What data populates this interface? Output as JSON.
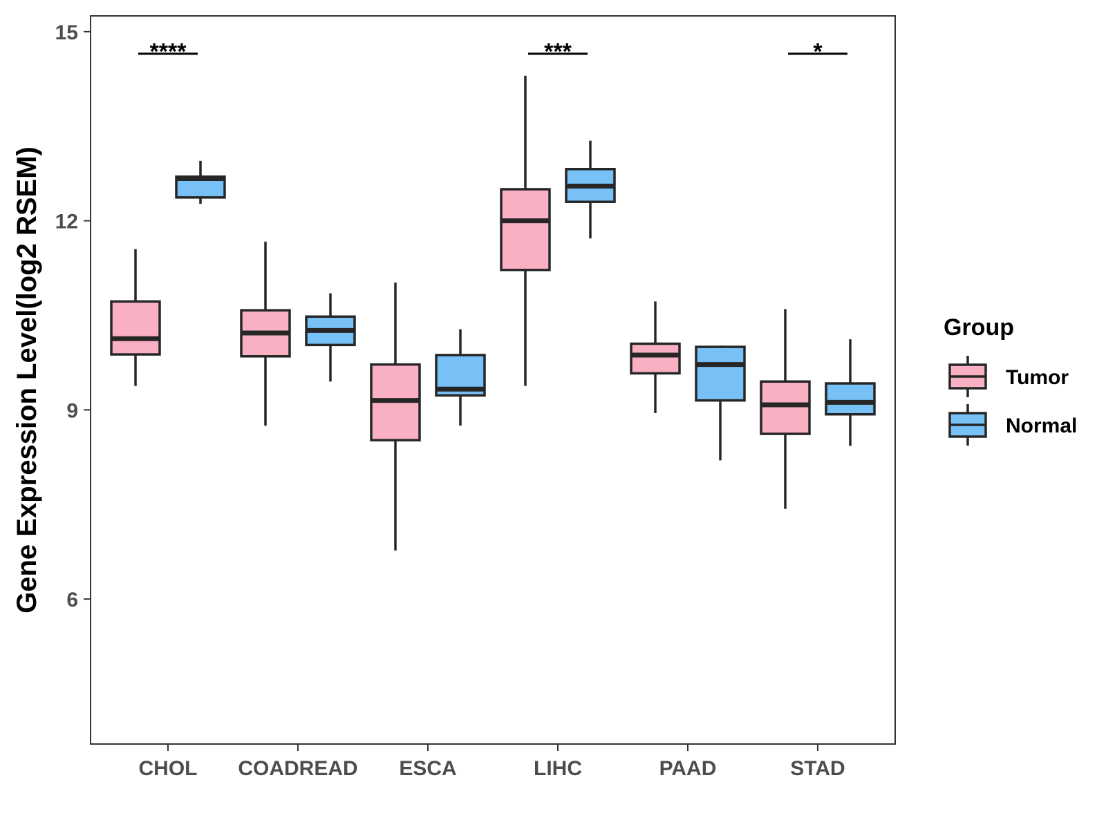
{
  "chart_data": {
    "type": "boxplot",
    "title": "",
    "xlabel": "",
    "ylabel": "Gene Expression Level(log2 RSEM)",
    "ylim": [
      3.7,
      15.25
    ],
    "yticks": [
      6,
      9,
      12,
      15
    ],
    "grid": false,
    "legend_position": "right",
    "legend_title": "Group",
    "categories": [
      "CHOL",
      "COADREAD",
      "ESCA",
      "LIHC",
      "PAAD",
      "STAD"
    ],
    "series": [
      {
        "name": "Tumor",
        "color": "#f9b0c3",
        "boxes": [
          {
            "whisker_low": 9.38,
            "q1": 9.88,
            "median": 10.13,
            "q3": 10.72,
            "whisker_high": 11.55
          },
          {
            "whisker_low": 8.75,
            "q1": 9.85,
            "median": 10.22,
            "q3": 10.58,
            "whisker_high": 11.67
          },
          {
            "whisker_low": 6.77,
            "q1": 8.52,
            "median": 9.15,
            "q3": 9.72,
            "whisker_high": 11.02
          },
          {
            "whisker_low": 9.38,
            "q1": 11.22,
            "median": 12.0,
            "q3": 12.5,
            "whisker_high": 14.3
          },
          {
            "whisker_low": 8.95,
            "q1": 9.58,
            "median": 9.87,
            "q3": 10.05,
            "whisker_high": 10.72
          },
          {
            "whisker_low": 7.43,
            "q1": 8.62,
            "median": 9.08,
            "q3": 9.45,
            "whisker_high": 10.6
          }
        ]
      },
      {
        "name": "Normal",
        "color": "#77c1f7",
        "boxes": [
          {
            "whisker_low": 12.27,
            "q1": 12.37,
            "median": 12.67,
            "q3": 12.7,
            "whisker_high": 12.95
          },
          {
            "whisker_low": 9.45,
            "q1": 10.03,
            "median": 10.26,
            "q3": 10.48,
            "whisker_high": 10.85
          },
          {
            "whisker_low": 8.75,
            "q1": 9.23,
            "median": 9.33,
            "q3": 9.87,
            "whisker_high": 10.28
          },
          {
            "whisker_low": 11.72,
            "q1": 12.3,
            "median": 12.55,
            "q3": 12.82,
            "whisker_high": 13.27
          },
          {
            "whisker_low": 8.2,
            "q1": 9.15,
            "median": 9.72,
            "q3": 10.0,
            "whisker_high": 10.02
          },
          {
            "whisker_low": 8.43,
            "q1": 8.93,
            "median": 9.12,
            "q3": 9.42,
            "whisker_high": 10.12
          }
        ]
      }
    ],
    "significance": [
      {
        "category": "CHOL",
        "label": "****",
        "y": 14.65
      },
      {
        "category": "LIHC",
        "label": "***",
        "y": 14.65
      },
      {
        "category": "STAD",
        "label": "*",
        "y": 14.65
      }
    ]
  }
}
